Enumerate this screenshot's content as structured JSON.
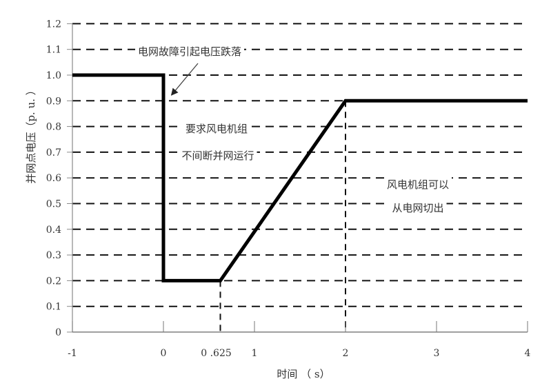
{
  "chart_data": {
    "type": "line",
    "title": "",
    "xlabel": "时间 （ s）",
    "ylabel": "并网点电压（p. u. ）",
    "xlim": [
      -1,
      4
    ],
    "ylim": [
      0,
      1.2
    ],
    "x_ticks": [
      -1,
      0,
      0.625,
      1,
      2,
      3,
      4
    ],
    "x_tick_labels": [
      "-1",
      "0",
      "0 .625",
      "1",
      "2",
      "3",
      "4"
    ],
    "y_ticks": [
      0,
      0.1,
      0.2,
      0.3,
      0.4,
      0.5,
      0.6,
      0.7,
      0.8,
      0.9,
      1.0,
      1.1,
      1.2
    ],
    "y_tick_labels": [
      "0",
      "0.1",
      "0.2",
      "0.3",
      "0.4",
      "0.5",
      "0.6",
      "0.7",
      "0.8",
      "0.9",
      "1.0",
      "1.1",
      "1.2"
    ],
    "grid": "horizontal dashed",
    "series": [
      {
        "x": [
          -1,
          0,
          0,
          0.625,
          2,
          4
        ],
        "y": [
          1.0,
          1.0,
          0.2,
          0.2,
          0.9,
          0.9
        ],
        "color": "#000000"
      }
    ],
    "reference_lines": [
      {
        "x": 0.625,
        "from": 0,
        "to": 0.2
      },
      {
        "x": 2,
        "from": 0,
        "to": 0.9
      }
    ],
    "annotations": [
      {
        "text": "电网故障引起电压跌落",
        "arrow_to": {
          "x": 0.08,
          "y": 0.93
        }
      },
      {
        "text": "要求风电机组"
      },
      {
        "text": "不间断并网运行"
      },
      {
        "text": "风电机组可以"
      },
      {
        "text": "从电网切出"
      }
    ]
  }
}
